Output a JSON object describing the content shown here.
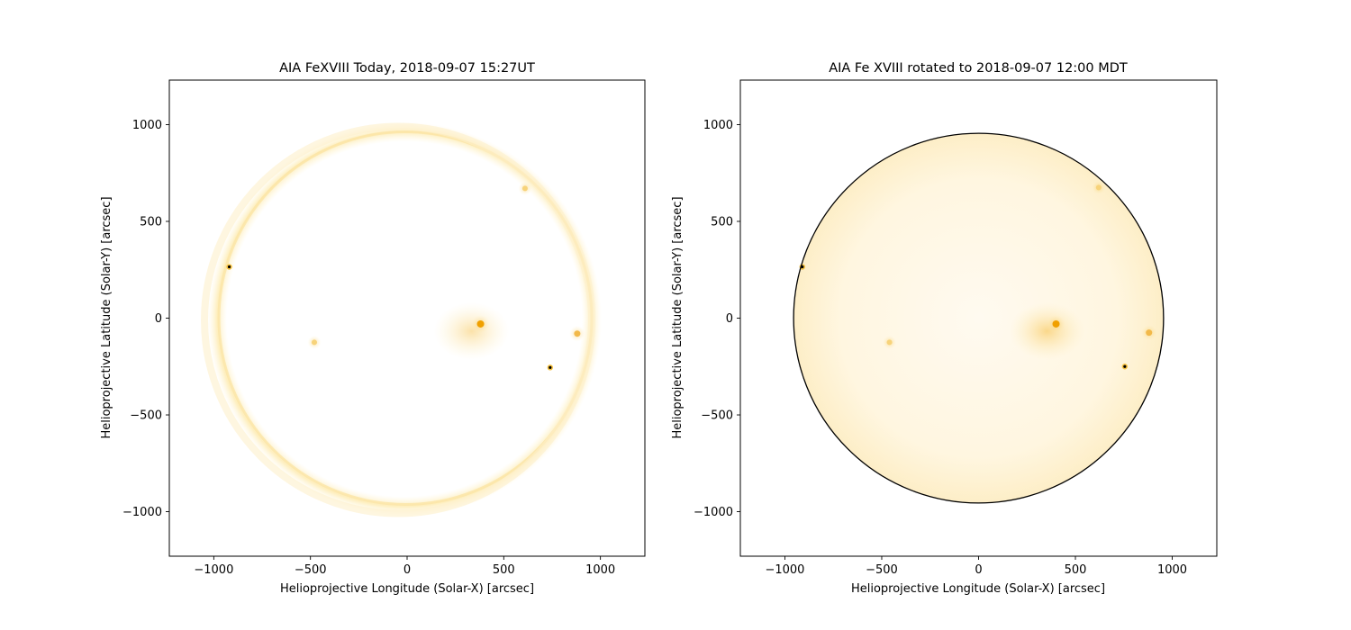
{
  "chart_data": [
    {
      "type": "heatmap",
      "title": "AIA FeXVIII Today, 2018-09-07 15:27UT",
      "xlabel": "Helioprojective Longitude (Solar-X) [arcsec]",
      "ylabel": "Helioprojective Latitude (Solar-Y) [arcsec]",
      "xlim": [
        -1230,
        1230
      ],
      "ylim": [
        -1230,
        1230
      ],
      "xticks": [
        -1000,
        -500,
        0,
        500,
        1000
      ],
      "yticks": [
        -1000,
        -500,
        0,
        500,
        1000
      ],
      "xtick_labels": [
        "−1000",
        "−500",
        "0",
        "500",
        "1000"
      ],
      "ytick_labels": [
        "−1000",
        "−500",
        "0",
        "500",
        "1000"
      ],
      "colormap": "white-to-orange",
      "colors": {
        "low": "#ffffff",
        "mid": "#fde9a6",
        "high": "#f0a000",
        "peak": "#000000"
      },
      "solar_disk": {
        "center": [
          0,
          0
        ],
        "radius": 955
      },
      "limb_circle_drawn": false,
      "bright_features": [
        {
          "x": 380,
          "y": -30,
          "intensity": "high"
        },
        {
          "x": 880,
          "y": -80,
          "intensity": "medium"
        },
        {
          "x": 740,
          "y": -255,
          "intensity": "peak"
        },
        {
          "x": -920,
          "y": 265,
          "intensity": "peak"
        },
        {
          "x": -480,
          "y": -125,
          "intensity": "low"
        },
        {
          "x": 610,
          "y": 670,
          "intensity": "low"
        }
      ]
    },
    {
      "type": "heatmap",
      "title": "AIA Fe XVIII rotated to 2018-09-07 12:00 MDT",
      "xlabel": "Helioprojective Longitude (Solar-X) [arcsec]",
      "ylabel": "Helioprojective Latitude (Solar-Y) [arcsec]",
      "xlim": [
        -1230,
        1230
      ],
      "ylim": [
        -1230,
        1230
      ],
      "xticks": [
        -1000,
        -500,
        0,
        500,
        1000
      ],
      "yticks": [
        -1000,
        -500,
        0,
        500,
        1000
      ],
      "xtick_labels": [
        "−1000",
        "−500",
        "0",
        "500",
        "1000"
      ],
      "ytick_labels": [
        "−1000",
        "−500",
        "0",
        "500",
        "1000"
      ],
      "colormap": "white-to-orange",
      "colors": {
        "low": "#ffffff",
        "mid": "#fde9a6",
        "high": "#f0a000",
        "peak": "#000000"
      },
      "solar_disk": {
        "center": [
          0,
          0
        ],
        "radius": 955
      },
      "limb_circle_drawn": true,
      "bright_features": [
        {
          "x": 400,
          "y": -30,
          "intensity": "high"
        },
        {
          "x": 880,
          "y": -75,
          "intensity": "medium"
        },
        {
          "x": 755,
          "y": -250,
          "intensity": "peak"
        },
        {
          "x": -910,
          "y": 265,
          "intensity": "peak"
        },
        {
          "x": -460,
          "y": -125,
          "intensity": "low"
        },
        {
          "x": 620,
          "y": 675,
          "intensity": "low"
        }
      ]
    }
  ]
}
